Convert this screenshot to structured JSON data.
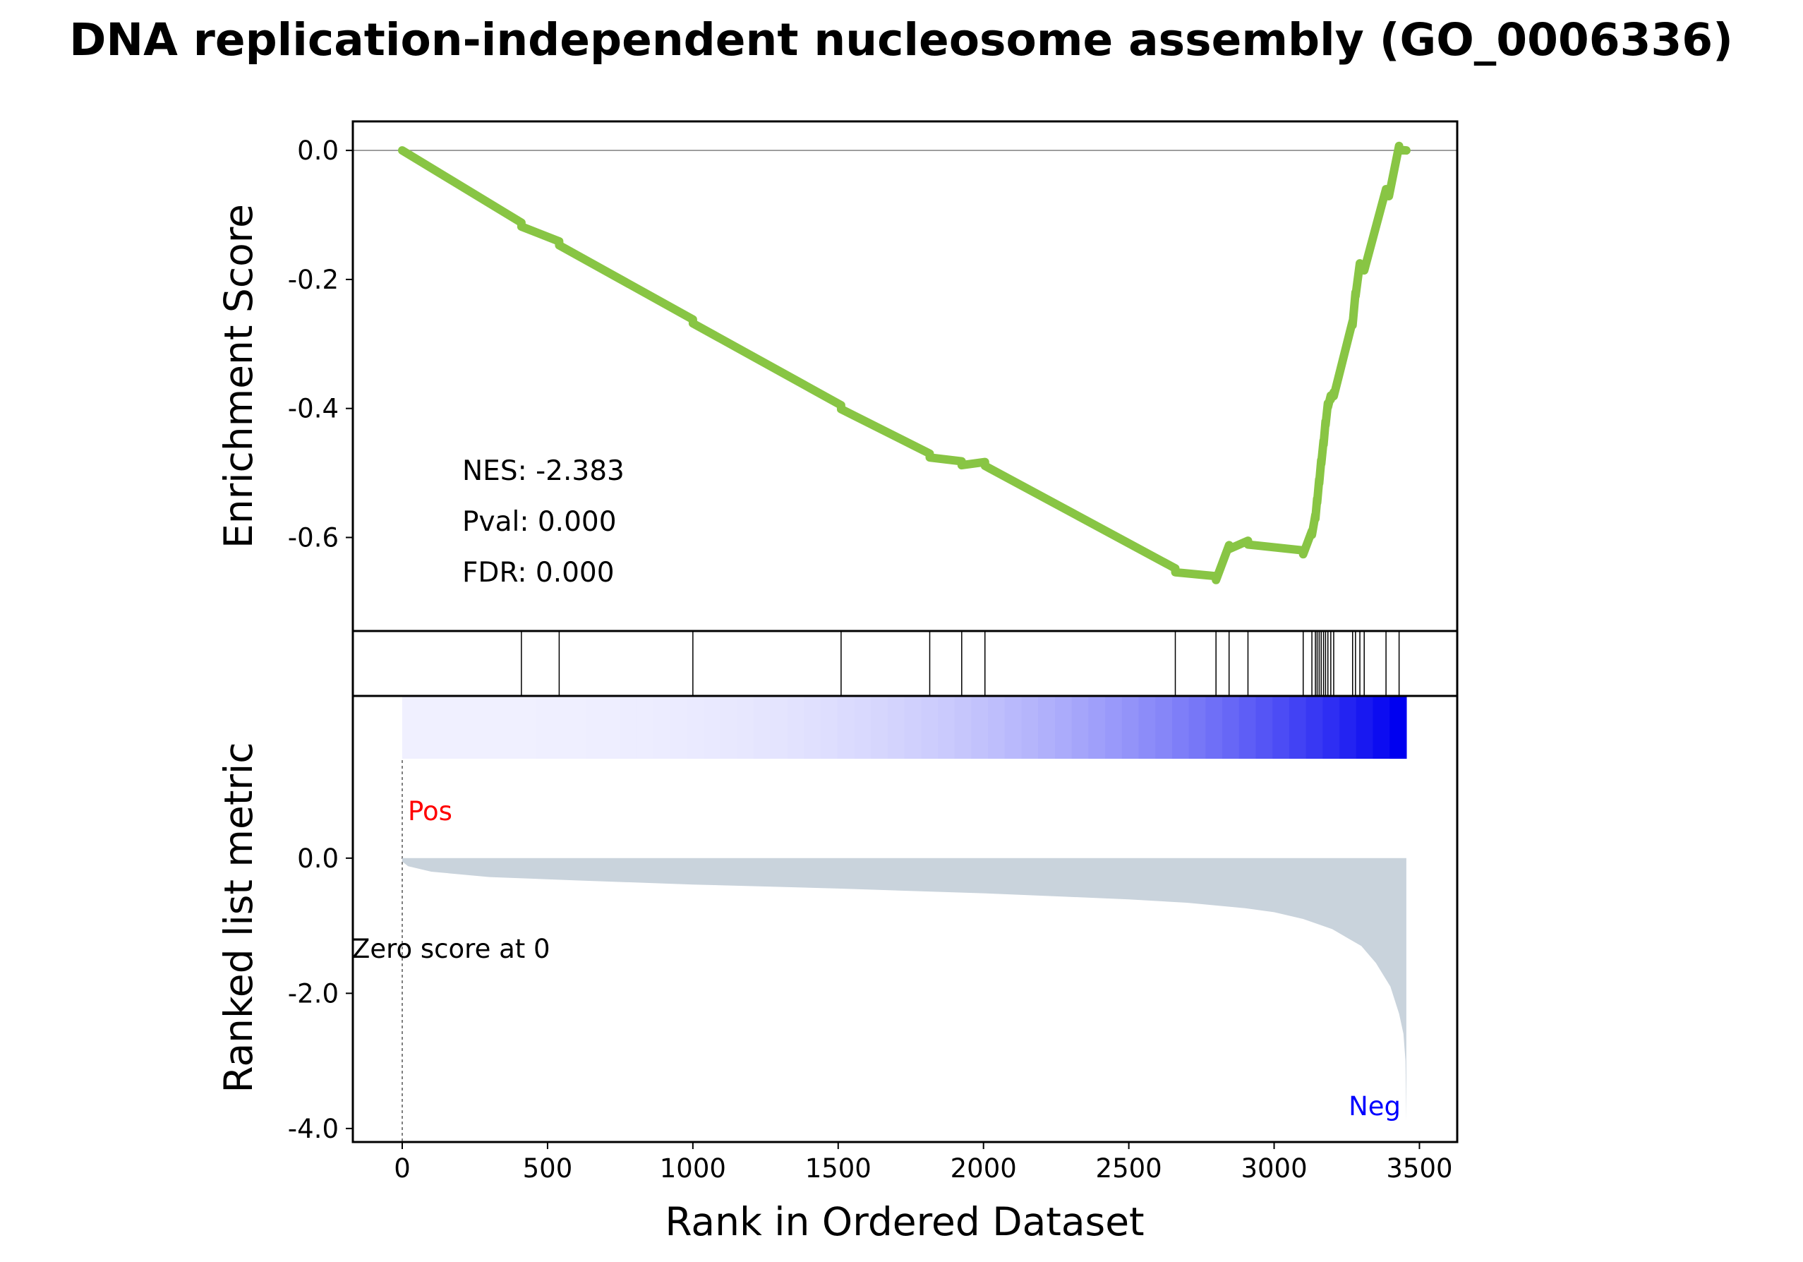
{
  "chart_data": {
    "type": "line",
    "title": "DNA replication-independent nucleosome assembly (GO_0006336)",
    "xlabel": "Rank in Ordered Dataset",
    "xlim": [
      -170,
      3630
    ],
    "xticks": [
      0,
      500,
      1000,
      1500,
      2000,
      2500,
      3000,
      3500
    ],
    "xtick_labels": [
      "0",
      "500",
      "1000",
      "1500",
      "2000",
      "2500",
      "3000",
      "3500"
    ],
    "n_genes": 3455,
    "enrichment_panel": {
      "ylabel": "Enrichment Score",
      "ylim": [
        -0.745,
        0.045
      ],
      "yticks": [
        0.0,
        -0.2,
        -0.4,
        -0.6
      ],
      "ytick_labels": [
        "0.0",
        "-0.2",
        "-0.4",
        "-0.6"
      ],
      "line_color": "#88c544",
      "zero_line": true,
      "stats": [
        "NES: -2.383",
        "Pval: 0.000",
        "FDR: 0.000"
      ],
      "series": [
        {
          "x": [
            0,
            410,
            410,
            540,
            540,
            1000,
            1000,
            1510,
            1510,
            1815,
            1815,
            1925,
            1925,
            2005,
            2005,
            2660,
            2660,
            2800,
            2800,
            2845,
            2845,
            2910,
            2910,
            3100,
            3100,
            3130,
            3130,
            3142,
            3142,
            3148,
            3148,
            3155,
            3155,
            3162,
            3162,
            3170,
            3170,
            3177,
            3177,
            3185,
            3185,
            3195,
            3195,
            3205,
            3205,
            3270,
            3270,
            3280,
            3280,
            3295,
            3295,
            3310,
            3310,
            3385,
            3385,
            3395,
            3395,
            3430,
            3430,
            3455
          ],
          "y": [
            0.0,
            -0.112,
            -0.118,
            -0.141,
            -0.147,
            -0.262,
            -0.268,
            -0.395,
            -0.401,
            -0.47,
            -0.476,
            -0.482,
            -0.488,
            -0.483,
            -0.489,
            -0.648,
            -0.654,
            -0.66,
            -0.666,
            -0.612,
            -0.618,
            -0.605,
            -0.611,
            -0.62,
            -0.626,
            -0.59,
            -0.596,
            -0.565,
            -0.571,
            -0.54,
            -0.546,
            -0.51,
            -0.516,
            -0.48,
            -0.486,
            -0.45,
            -0.456,
            -0.42,
            -0.426,
            -0.392,
            -0.398,
            -0.38,
            -0.386,
            -0.375,
            -0.381,
            -0.265,
            -0.271,
            -0.22,
            -0.226,
            -0.175,
            -0.181,
            -0.18,
            -0.186,
            -0.06,
            -0.066,
            -0.065,
            -0.071,
            0.007,
            0.001,
            0.0
          ]
        }
      ]
    },
    "hits_panel": {
      "hit_ranks": [
        410,
        540,
        1000,
        1510,
        1815,
        1925,
        2005,
        2660,
        2800,
        2845,
        2910,
        3100,
        3130,
        3142,
        3148,
        3155,
        3162,
        3170,
        3177,
        3185,
        3195,
        3205,
        3270,
        3280,
        3295,
        3310,
        3385,
        3430
      ]
    },
    "ranked_panel": {
      "ylabel": "Ranked list metric",
      "ylim": [
        -4.2,
        2.4
      ],
      "yticks": [
        0.0,
        -2.0,
        -4.0
      ],
      "ytick_labels": [
        "0.0",
        "-2.0",
        "-4.0"
      ],
      "fill_color": "#c9d3dc",
      "pos_label": "Pos",
      "pos_color": "#ff0000",
      "neg_label": "Neg",
      "neg_color": "#0000ff",
      "zero_cross_label": "Zero score at 0",
      "heatmap_colors": [
        "#f0f0ff",
        "#0000f0"
      ],
      "metric_curve": {
        "rank": [
          0,
          20,
          100,
          300,
          600,
          1000,
          1500,
          2000,
          2500,
          2700,
          2900,
          3000,
          3100,
          3200,
          3300,
          3350,
          3400,
          3430,
          3445,
          3452,
          3455
        ],
        "value": [
          -0.05,
          -0.12,
          -0.2,
          -0.28,
          -0.33,
          -0.39,
          -0.45,
          -0.52,
          -0.61,
          -0.66,
          -0.74,
          -0.8,
          -0.9,
          -1.05,
          -1.3,
          -1.55,
          -1.9,
          -2.3,
          -2.6,
          -3.0,
          -3.9
        ]
      }
    }
  }
}
